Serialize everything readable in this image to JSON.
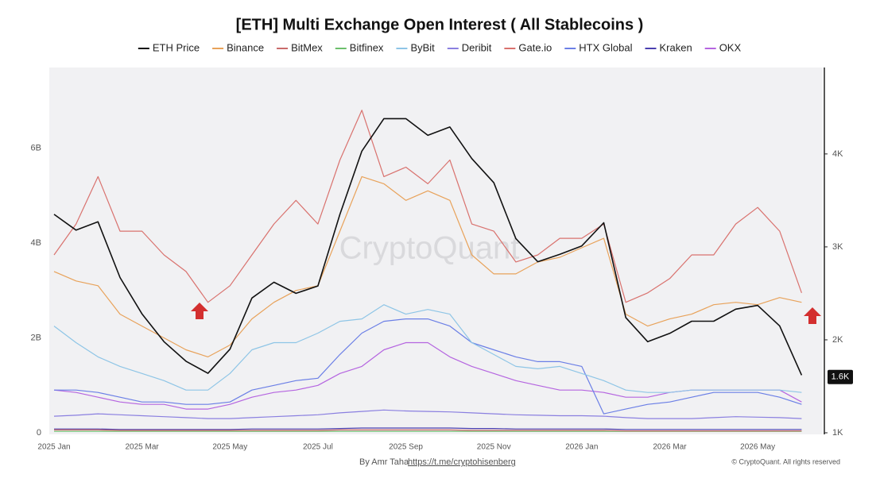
{
  "chart_data": {
    "type": "line",
    "title": "[ETH] Multi Exchange Open Interest ( All Stablecoins )",
    "watermark": "CryptoQuant",
    "credit": "By Amr Taha",
    "credit_link": "https://t.me/cryptohisenberg",
    "copyright": "© CryptoQuant. All rights reserved",
    "categories": [
      "2025 Jan",
      null,
      null,
      null,
      "2025 Mar",
      null,
      null,
      null,
      "2025 May",
      null,
      null,
      null,
      "2025 Jul",
      null,
      null,
      null,
      "2025 Sep",
      null,
      null,
      null,
      "2025 Nov",
      null,
      null,
      null,
      "2026 Jan",
      null,
      null,
      null,
      "2026 Mar",
      null,
      null,
      null,
      "2026 May",
      null,
      null
    ],
    "ylim": [
      0,
      7.7
    ],
    "yticks": [
      {
        "value": 0,
        "label": "0"
      },
      {
        "value": 2,
        "label": "2B"
      },
      {
        "value": 4,
        "label": "4B"
      },
      {
        "value": 6,
        "label": "6B"
      }
    ],
    "y2lim": [
      1000,
      4930
    ],
    "y2ticks": [
      {
        "value": 1000,
        "label": "1K"
      },
      {
        "value": 2000,
        "label": "2K"
      },
      {
        "value": 3000,
        "label": "3K"
      },
      {
        "value": 4000,
        "label": "4K"
      }
    ],
    "annotations": [
      {
        "text": "1.6K",
        "value": 1600,
        "axis": "y2"
      }
    ],
    "series": [
      {
        "name": "ETH Price",
        "color": "#111111",
        "axis": "y2",
        "values": [
          3350,
          3180,
          3270,
          2670,
          2280,
          1980,
          1770,
          1640,
          1900,
          2450,
          2620,
          2500,
          2580,
          3350,
          4030,
          4380,
          4380,
          4200,
          4290,
          3950,
          3690,
          3090,
          2840,
          2920,
          3010,
          3260,
          2240,
          1980,
          2070,
          2200,
          2200,
          2330,
          2370,
          2150,
          1620
        ]
      },
      {
        "name": "Binance",
        "color": "#e8a25a",
        "values": [
          3.4,
          3.2,
          3.1,
          2.5,
          2.25,
          2.0,
          1.75,
          1.6,
          1.85,
          2.4,
          2.75,
          3.0,
          3.1,
          4.25,
          5.4,
          5.25,
          4.9,
          5.1,
          4.9,
          3.75,
          3.35,
          3.35,
          3.6,
          3.7,
          3.9,
          4.1,
          2.5,
          2.25,
          2.4,
          2.5,
          2.7,
          2.75,
          2.7,
          2.85,
          2.75
        ]
      },
      {
        "name": "BitMex",
        "color": "#c96b6b",
        "values": [
          0.06,
          0.06,
          0.06,
          0.05,
          0.05,
          0.05,
          0.05,
          0.05,
          0.05,
          0.05,
          0.05,
          0.05,
          0.05,
          0.06,
          0.06,
          0.06,
          0.06,
          0.06,
          0.06,
          0.05,
          0.05,
          0.05,
          0.05,
          0.05,
          0.05,
          0.05,
          0.04,
          0.04,
          0.04,
          0.04,
          0.04,
          0.04,
          0.04,
          0.04,
          0.04
        ]
      },
      {
        "name": "Bitfinex",
        "color": "#6cbf6c",
        "values": [
          0.03,
          0.03,
          0.03,
          0.03,
          0.03,
          0.03,
          0.03,
          0.03,
          0.03,
          0.03,
          0.03,
          0.03,
          0.03,
          0.03,
          0.03,
          0.03,
          0.03,
          0.03,
          0.03,
          0.03,
          0.03,
          0.03,
          0.03,
          0.03,
          0.03,
          0.03,
          0.03,
          0.03,
          0.03,
          0.03,
          0.03,
          0.03,
          0.03,
          0.03,
          0.03
        ]
      },
      {
        "name": "ByBit",
        "color": "#8ec5e6",
        "values": [
          2.25,
          1.9,
          1.6,
          1.4,
          1.25,
          1.1,
          0.9,
          0.9,
          1.25,
          1.75,
          1.9,
          1.9,
          2.1,
          2.35,
          2.4,
          2.7,
          2.5,
          2.6,
          2.5,
          1.9,
          1.65,
          1.4,
          1.35,
          1.4,
          1.25,
          1.1,
          0.9,
          0.85,
          0.85,
          0.9,
          0.9,
          0.9,
          0.9,
          0.9,
          0.85
        ]
      },
      {
        "name": "Deribit",
        "color": "#8a7fe0",
        "values": [
          0.35,
          0.37,
          0.4,
          0.38,
          0.36,
          0.34,
          0.32,
          0.3,
          0.3,
          0.32,
          0.34,
          0.36,
          0.38,
          0.42,
          0.45,
          0.48,
          0.46,
          0.45,
          0.44,
          0.42,
          0.4,
          0.38,
          0.37,
          0.36,
          0.36,
          0.35,
          0.32,
          0.3,
          0.3,
          0.3,
          0.32,
          0.34,
          0.33,
          0.32,
          0.3
        ]
      },
      {
        "name": "Gate.io",
        "color": "#d9726e",
        "values": [
          3.75,
          4.4,
          5.4,
          4.25,
          4.25,
          3.75,
          3.4,
          2.75,
          3.1,
          3.75,
          4.4,
          4.9,
          4.4,
          5.75,
          6.8,
          5.4,
          5.6,
          5.25,
          5.75,
          4.4,
          4.25,
          3.6,
          3.75,
          4.1,
          4.1,
          4.4,
          2.75,
          2.95,
          3.25,
          3.75,
          3.75,
          4.4,
          4.75,
          4.25,
          2.95
        ]
      },
      {
        "name": "HTX Global",
        "color": "#6b7fe6",
        "values": [
          0.9,
          0.9,
          0.85,
          0.75,
          0.65,
          0.65,
          0.6,
          0.6,
          0.65,
          0.9,
          1.0,
          1.1,
          1.15,
          1.65,
          2.1,
          2.35,
          2.4,
          2.4,
          2.25,
          1.9,
          1.75,
          1.6,
          1.5,
          1.5,
          1.4,
          0.4,
          0.5,
          0.6,
          0.65,
          0.75,
          0.85,
          0.85,
          0.85,
          0.75,
          0.6
        ]
      },
      {
        "name": "Kraken",
        "color": "#4a3fb0",
        "values": [
          0.08,
          0.08,
          0.08,
          0.07,
          0.07,
          0.07,
          0.07,
          0.07,
          0.07,
          0.08,
          0.08,
          0.08,
          0.08,
          0.09,
          0.1,
          0.1,
          0.1,
          0.1,
          0.1,
          0.09,
          0.09,
          0.08,
          0.08,
          0.08,
          0.08,
          0.08,
          0.07,
          0.07,
          0.07,
          0.07,
          0.07,
          0.07,
          0.07,
          0.07,
          0.07
        ]
      },
      {
        "name": "OKX",
        "color": "#b565e0",
        "values": [
          0.9,
          0.85,
          0.75,
          0.65,
          0.6,
          0.6,
          0.5,
          0.5,
          0.6,
          0.75,
          0.85,
          0.9,
          1.0,
          1.25,
          1.4,
          1.75,
          1.9,
          1.9,
          1.6,
          1.4,
          1.25,
          1.1,
          1.0,
          0.9,
          0.9,
          0.85,
          0.75,
          0.75,
          0.85,
          0.9,
          0.9,
          0.9,
          0.9,
          0.9,
          0.65
        ]
      }
    ]
  }
}
